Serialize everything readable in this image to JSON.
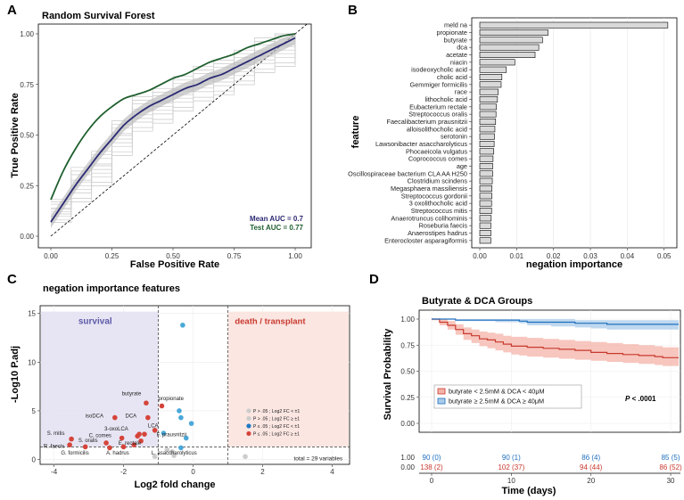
{
  "panels": {
    "A": {
      "letter": "A"
    },
    "B": {
      "letter": "B"
    },
    "C": {
      "letter": "C"
    },
    "D": {
      "letter": "D"
    }
  },
  "colors": {
    "mean": "#2b2a73",
    "test": "#1f5f2f",
    "survival": "#6a67b8",
    "death": "#d4443a",
    "red": "#d5443a",
    "blue": "#1f78c4",
    "lightblue": "#4aa8d8",
    "grey": "#cccccc"
  },
  "chart_data": [
    {
      "id": "A",
      "type": "line",
      "title": "Random Survival Forest",
      "xlabel": "False Positive Rate",
      "ylabel": "True Positive Rate",
      "xlim": [
        0,
        1
      ],
      "ylim": [
        0,
        1
      ],
      "xticks": [
        "0.00",
        "0.25",
        "0.50",
        "0.75",
        "1.00"
      ],
      "yticks": [
        "0.00",
        "0.25",
        "0.50",
        "0.75",
        "1.00"
      ],
      "series": [
        {
          "name": "Mean",
          "x": [
            0,
            0.05,
            0.1,
            0.15,
            0.2,
            0.25,
            0.3,
            0.35,
            0.4,
            0.45,
            0.5,
            0.55,
            0.6,
            0.65,
            0.7,
            0.75,
            0.8,
            0.85,
            0.9,
            0.95,
            1
          ],
          "values": [
            0.07,
            0.16,
            0.25,
            0.33,
            0.41,
            0.48,
            0.55,
            0.6,
            0.64,
            0.67,
            0.7,
            0.73,
            0.75,
            0.78,
            0.8,
            0.83,
            0.86,
            0.89,
            0.92,
            0.95,
            0.98
          ]
        },
        {
          "name": "Test",
          "x": [
            0,
            0.05,
            0.1,
            0.15,
            0.2,
            0.25,
            0.3,
            0.35,
            0.4,
            0.45,
            0.5,
            0.55,
            0.6,
            0.65,
            0.7,
            0.75,
            0.8,
            0.85,
            0.9,
            0.95,
            1
          ],
          "values": [
            0.18,
            0.32,
            0.43,
            0.52,
            0.59,
            0.64,
            0.68,
            0.7,
            0.72,
            0.75,
            0.78,
            0.8,
            0.83,
            0.86,
            0.88,
            0.9,
            0.93,
            0.95,
            0.97,
            0.99,
            1.0
          ]
        }
      ],
      "annotations": {
        "mean_auc": "Mean AUC = 0.7",
        "test_auc": "Test AUC = 0.77"
      }
    },
    {
      "id": "B",
      "type": "bar",
      "orientation": "horizontal",
      "xlabel": "negation importance",
      "ylabel": "feature",
      "xlim": [
        0,
        0.052
      ],
      "xticks": [
        "0.00",
        "0.01",
        "0.02",
        "0.03",
        "0.04",
        "0.05"
      ],
      "categories": [
        "meld na",
        "propionate",
        "butyrate",
        "dca",
        "acetate",
        "niacin",
        "isodeoxycholic acid",
        "cholic acid",
        "Gemmiger formicilis",
        "race",
        "lithocholic acid",
        "Eubacterium rectale",
        "Streptococcus oralis",
        "Faecalibacterium prausnitzii",
        "alloisolithocholic acid",
        "serotonin",
        "Lawsonibacter asaccharolyticus",
        "Phocaeicola vulgatus",
        "Coprococcus comes",
        "age",
        "Oscillospiraceae bacterium CLA AA H250",
        "Clostridium scindens",
        "Megasphaera massiliensis",
        "Streptococcus gordonii",
        "3 oxolithocholic acid",
        "Streptococcus mitis",
        "Anaerotruncus colihominis",
        "Roseburia faecis",
        "Anaerostipes hadrus",
        "Enterocloster asparagiformis"
      ],
      "values": [
        0.051,
        0.0185,
        0.017,
        0.016,
        0.015,
        0.0095,
        0.0072,
        0.006,
        0.0058,
        0.005,
        0.0048,
        0.0045,
        0.0044,
        0.0043,
        0.0041,
        0.004,
        0.0039,
        0.0038,
        0.0036,
        0.0035,
        0.0035,
        0.0034,
        0.0033,
        0.0033,
        0.0032,
        0.0032,
        0.0031,
        0.003,
        0.003,
        0.003
      ]
    },
    {
      "id": "C",
      "type": "scatter",
      "title": "negation importance features",
      "xlabel": "Log2 fold change",
      "ylabel": "-Log10 P.adj",
      "xlim": [
        -4.4,
        4.5
      ],
      "ylim": [
        -0.5,
        15.8
      ],
      "xticks": [
        "-4",
        "-2",
        "0",
        "2",
        "4"
      ],
      "yticks": [
        "0",
        "5",
        "10",
        "15"
      ],
      "regions": {
        "left": "survival",
        "right": "death / transplant"
      },
      "legend": [
        "P > .05 ; Log2 FC < ±1",
        "P > .05 ; Log2 FC ≥ ±1",
        "P ≤ .05 ; Log2 FC < ±1",
        "P ≤ .05 ; Log2 FC ≥ ±1"
      ],
      "total_label": "total = 29 variables",
      "points": [
        {
          "label": "butyrate",
          "x": -1.35,
          "y": 5.8,
          "class": "red"
        },
        {
          "label": "propionate",
          "x": -0.9,
          "y": 5.5,
          "class": "red"
        },
        {
          "label": "isoDCA",
          "x": -2.25,
          "y": 4.3,
          "class": "red"
        },
        {
          "label": "DCA",
          "x": -1.3,
          "y": 4.3,
          "class": "red"
        },
        {
          "label": "LCA",
          "x": -1.1,
          "y": 3.0,
          "class": "red"
        },
        {
          "label": "3-oxoLCA",
          "x": -1.55,
          "y": 2.6,
          "class": "red"
        },
        {
          "label": "C. comes",
          "x": -2.05,
          "y": 2.2,
          "class": "red"
        },
        {
          "label": "S. oralis",
          "x": -2.5,
          "y": 1.7,
          "class": "red"
        },
        {
          "label": "E. rectale",
          "x": -1.7,
          "y": 1.5,
          "class": "red"
        },
        {
          "label": "S. mitis",
          "x": -3.5,
          "y": 2.1,
          "class": "red"
        },
        {
          "label": "R. faecis",
          "x": -3.55,
          "y": 1.5,
          "class": "red"
        },
        {
          "label": "G. formicilis",
          "x": -3.1,
          "y": 1.3,
          "class": "red"
        },
        {
          "label": "A. hadrus",
          "x": -2.0,
          "y": 1.3,
          "class": "red"
        },
        {
          "label": "F. prausnitzii",
          "x": -0.85,
          "y": 2.7,
          "class": "blue"
        },
        {
          "label": "L. asaccharolyticus",
          "x": -1.1,
          "y": 0.3,
          "class": "grey"
        },
        {
          "label": "",
          "x": -1.4,
          "y": 2.6,
          "class": "red"
        },
        {
          "label": "",
          "x": -1.6,
          "y": 2.4,
          "class": "red"
        },
        {
          "label": "",
          "x": -1.5,
          "y": 1.9,
          "class": "red"
        },
        {
          "label": "",
          "x": -2.4,
          "y": 1.2,
          "class": "red"
        },
        {
          "label": "",
          "x": -0.3,
          "y": 13.8,
          "class": "blue"
        },
        {
          "label": "",
          "x": -0.4,
          "y": 5.0,
          "class": "blue"
        },
        {
          "label": "",
          "x": -0.35,
          "y": 4.3,
          "class": "blue"
        },
        {
          "label": "",
          "x": -0.05,
          "y": 3.7,
          "class": "blue"
        },
        {
          "label": "",
          "x": -0.35,
          "y": 1.2,
          "class": "blue"
        },
        {
          "label": "",
          "x": -0.2,
          "y": 2.2,
          "class": "blue"
        },
        {
          "label": "",
          "x": 1.5,
          "y": 0.3,
          "class": "grey"
        },
        {
          "label": "",
          "x": -0.55,
          "y": 0.4,
          "class": "grey"
        },
        {
          "label": "",
          "x": -0.75,
          "y": 1.0,
          "class": "grey"
        },
        {
          "label": "",
          "x": -0.6,
          "y": 0.8,
          "class": "grey"
        }
      ]
    },
    {
      "id": "D",
      "type": "line",
      "title": "Butyrate & DCA Groups",
      "xlabel": "Time (days)",
      "ylabel": "Survival Probability",
      "xlim": [
        0,
        31
      ],
      "ylim": [
        0,
        1
      ],
      "xticks": [
        "0",
        "10",
        "20",
        "30"
      ],
      "yticks": [
        "0.00",
        "0.25",
        "0.50",
        "0.75",
        "1.00"
      ],
      "pvalue_label": "P",
      "pvalue": "< .0001",
      "series": [
        {
          "name": "butyrate < 2.5mM & DCA < 40μM",
          "color": "red",
          "x": [
            0,
            1,
            2,
            3,
            4,
            5,
            6,
            7,
            8,
            9,
            10,
            11,
            12,
            14,
            16,
            18,
            20,
            22,
            24,
            26,
            28,
            29,
            30,
            31
          ],
          "values": [
            1.0,
            0.97,
            0.94,
            0.9,
            0.86,
            0.84,
            0.81,
            0.8,
            0.78,
            0.76,
            0.74,
            0.74,
            0.73,
            0.72,
            0.71,
            0.7,
            0.68,
            0.67,
            0.66,
            0.65,
            0.64,
            0.63,
            0.63,
            0.63
          ],
          "lower": [
            0.99,
            0.94,
            0.9,
            0.85,
            0.8,
            0.77,
            0.74,
            0.72,
            0.7,
            0.68,
            0.66,
            0.65,
            0.64,
            0.63,
            0.62,
            0.61,
            0.6,
            0.59,
            0.58,
            0.57,
            0.56,
            0.55,
            0.55,
            0.55
          ],
          "upper": [
            1.0,
            1.0,
            0.98,
            0.95,
            0.92,
            0.9,
            0.88,
            0.87,
            0.86,
            0.84,
            0.83,
            0.83,
            0.82,
            0.81,
            0.8,
            0.79,
            0.78,
            0.77,
            0.76,
            0.75,
            0.74,
            0.73,
            0.73,
            0.73
          ]
        },
        {
          "name": "butyrate ≥ 2.5mM & DCA ≥ 40μM",
          "color": "blue",
          "x": [
            0,
            1,
            2,
            3,
            5,
            8,
            11,
            12,
            15,
            18,
            20,
            22,
            24,
            25,
            27,
            29,
            30,
            31
          ],
          "values": [
            1.0,
            1.0,
            1.0,
            0.99,
            0.99,
            0.99,
            0.98,
            0.97,
            0.97,
            0.96,
            0.96,
            0.95,
            0.95,
            0.95,
            0.95,
            0.95,
            0.95,
            0.95
          ],
          "lower": [
            1.0,
            1.0,
            1.0,
            0.98,
            0.98,
            0.97,
            0.96,
            0.94,
            0.93,
            0.92,
            0.91,
            0.9,
            0.9,
            0.9,
            0.9,
            0.9,
            0.9,
            0.9
          ],
          "upper": [
            1.0,
            1.0,
            1.0,
            1.0,
            1.0,
            1.0,
            1.0,
            1.0,
            1.0,
            0.99,
            0.99,
            0.99,
            0.99,
            0.99,
            0.99,
            0.99,
            0.99,
            0.99
          ]
        }
      ],
      "risk_table": {
        "blue": {
          "y_label": "1.00",
          "at": [
            "90 (0)",
            "90 (1)",
            "86 (4)",
            "85 (5)"
          ]
        },
        "red": {
          "y_label": "0.00",
          "at": [
            "138 (2)",
            "102 (37)",
            "94 (44)",
            "86 (52)"
          ]
        }
      }
    }
  ]
}
